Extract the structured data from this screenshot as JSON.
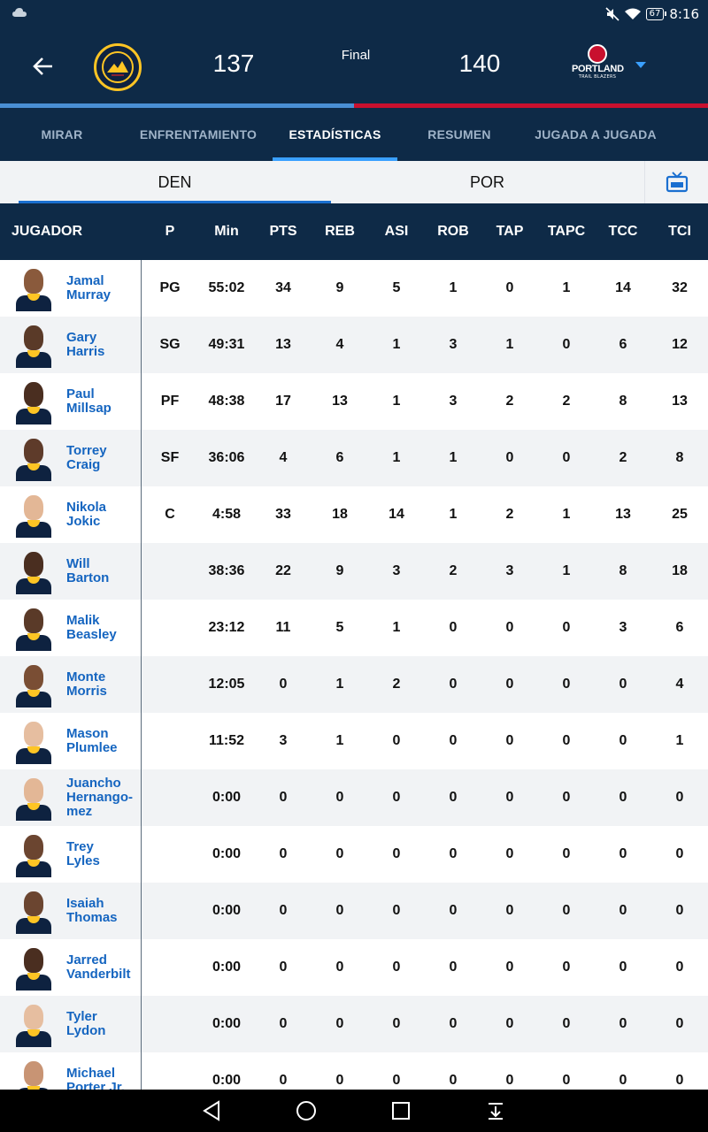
{
  "status_bar": {
    "icons": [
      "cloud-icon",
      "mute-icon",
      "wifi-icon",
      "battery-icon"
    ],
    "battery": "67",
    "time": "8:16"
  },
  "game": {
    "home_score": "137",
    "status": "Final",
    "away_score": "140",
    "away_team_wordmark": "PORTLAND",
    "away_team_sub": "TRAIL BLAZERS"
  },
  "tabs": [
    {
      "label": "MIRAR"
    },
    {
      "label": "ENFRENTAMIENTO"
    },
    {
      "label": "ESTADÍSTICAS"
    },
    {
      "label": "RESUMEN"
    },
    {
      "label": "JUGADA A JUGADA"
    }
  ],
  "team_tabs": {
    "home": "DEN",
    "away": "POR"
  },
  "columns": [
    "JUGADOR",
    "P",
    "Min",
    "PTS",
    "REB",
    "ASI",
    "ROB",
    "TAP",
    "TAPC",
    "TCC",
    "TCI"
  ],
  "players": [
    {
      "first": "Jamal",
      "last": "Murray",
      "pos": "PG",
      "min": "55:02",
      "pts": "34",
      "reb": "9",
      "asi": "5",
      "rob": "1",
      "tap": "0",
      "tapc": "1",
      "tcc": "14",
      "tci": "32"
    },
    {
      "first": "Gary",
      "last": "Harris",
      "pos": "SG",
      "min": "49:31",
      "pts": "13",
      "reb": "4",
      "asi": "1",
      "rob": "3",
      "tap": "1",
      "tapc": "0",
      "tcc": "6",
      "tci": "12"
    },
    {
      "first": "Paul",
      "last": "Millsap",
      "pos": "PF",
      "min": "48:38",
      "pts": "17",
      "reb": "13",
      "asi": "1",
      "rob": "3",
      "tap": "2",
      "tapc": "2",
      "tcc": "8",
      "tci": "13"
    },
    {
      "first": "Torrey",
      "last": "Craig",
      "pos": "SF",
      "min": "36:06",
      "pts": "4",
      "reb": "6",
      "asi": "1",
      "rob": "1",
      "tap": "0",
      "tapc": "0",
      "tcc": "2",
      "tci": "8"
    },
    {
      "first": "Nikola",
      "last": "Jokic",
      "pos": "C",
      "min": "4:58",
      "pts": "33",
      "reb": "18",
      "asi": "14",
      "rob": "1",
      "tap": "2",
      "tapc": "1",
      "tcc": "13",
      "tci": "25"
    },
    {
      "first": "Will",
      "last": "Barton",
      "pos": "",
      "min": "38:36",
      "pts": "22",
      "reb": "9",
      "asi": "3",
      "rob": "2",
      "tap": "3",
      "tapc": "1",
      "tcc": "8",
      "tci": "18"
    },
    {
      "first": "Malik",
      "last": "Beasley",
      "pos": "",
      "min": "23:12",
      "pts": "11",
      "reb": "5",
      "asi": "1",
      "rob": "0",
      "tap": "0",
      "tapc": "0",
      "tcc": "3",
      "tci": "6"
    },
    {
      "first": "Monte",
      "last": "Morris",
      "pos": "",
      "min": "12:05",
      "pts": "0",
      "reb": "1",
      "asi": "2",
      "rob": "0",
      "tap": "0",
      "tapc": "0",
      "tcc": "0",
      "tci": "4"
    },
    {
      "first": "Mason",
      "last": "Plumlee",
      "pos": "",
      "min": "11:52",
      "pts": "3",
      "reb": "1",
      "asi": "0",
      "rob": "0",
      "tap": "0",
      "tapc": "0",
      "tcc": "0",
      "tci": "1"
    },
    {
      "first": "Juancho",
      "last": "Hernango-mez",
      "pos": "",
      "min": "0:00",
      "pts": "0",
      "reb": "0",
      "asi": "0",
      "rob": "0",
      "tap": "0",
      "tapc": "0",
      "tcc": "0",
      "tci": "0"
    },
    {
      "first": "Trey",
      "last": "Lyles",
      "pos": "",
      "min": "0:00",
      "pts": "0",
      "reb": "0",
      "asi": "0",
      "rob": "0",
      "tap": "0",
      "tapc": "0",
      "tcc": "0",
      "tci": "0"
    },
    {
      "first": "Isaiah",
      "last": "Thomas",
      "pos": "",
      "min": "0:00",
      "pts": "0",
      "reb": "0",
      "asi": "0",
      "rob": "0",
      "tap": "0",
      "tapc": "0",
      "tcc": "0",
      "tci": "0"
    },
    {
      "first": "Jarred",
      "last": "Vanderbilt",
      "pos": "",
      "min": "0:00",
      "pts": "0",
      "reb": "0",
      "asi": "0",
      "rob": "0",
      "tap": "0",
      "tapc": "0",
      "tcc": "0",
      "tci": "0"
    },
    {
      "first": "Tyler",
      "last": "Lydon",
      "pos": "",
      "min": "0:00",
      "pts": "0",
      "reb": "0",
      "asi": "0",
      "rob": "0",
      "tap": "0",
      "tapc": "0",
      "tcc": "0",
      "tci": "0"
    },
    {
      "first": "Michael",
      "last": "Porter Jr.",
      "pos": "",
      "min": "0:00",
      "pts": "0",
      "reb": "0",
      "asi": "0",
      "rob": "0",
      "tap": "0",
      "tapc": "0",
      "tcc": "0",
      "tci": "0"
    }
  ],
  "nav": [
    "back-icon",
    "home-icon",
    "recents-icon",
    "notifications-icon"
  ],
  "colors": {
    "header_bg": "#0e2a47",
    "accent": "#3aa0ff",
    "link": "#1565c0",
    "den_bar": "#4a8fd4",
    "por_bar": "#c8102e"
  }
}
